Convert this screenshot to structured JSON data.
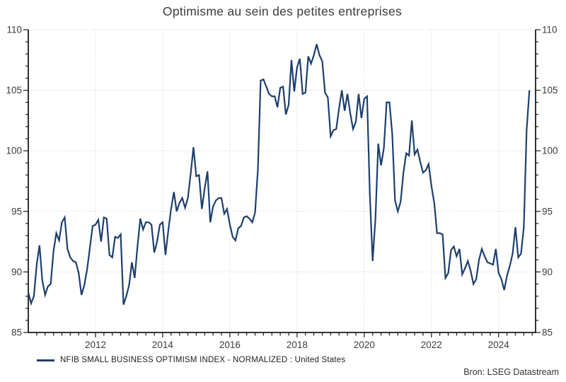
{
  "title": "Optimisme au sein des petites entreprises",
  "source": "Bron: LSEG Datastream",
  "legend": {
    "label": "NFIB SMALL BUSINESS OPTIMISM INDEX - NORMALIZED : United States"
  },
  "colors": {
    "line": "#1c3f6e",
    "grid": "#c9c9c9",
    "axis": "#1a1a1a",
    "tick_label": "#3c3c3c"
  },
  "chart_data": {
    "type": "line",
    "title": "Optimisme au sein des petites entreprises",
    "xlabel": "",
    "ylabel": "",
    "ylim": [
      85,
      110
    ],
    "y_ticks": [
      85,
      90,
      95,
      100,
      105,
      110
    ],
    "y_minor_step": 1,
    "x_tick_years": [
      2012,
      2014,
      2016,
      2018,
      2020,
      2022,
      2024
    ],
    "x_tick_labels": [
      "2012",
      "2014",
      "2016",
      "2018",
      "2020",
      "2022",
      "2024"
    ],
    "x_minor_step_years": 0.25,
    "x_range_years": [
      2010.0,
      2025.1
    ],
    "grid": "dotted",
    "legend_position": "bottom-left",
    "series": [
      {
        "name": "NFIB SMALL BUSINESS OPTIMISM INDEX - NORMALIZED : United States",
        "frequency": "monthly",
        "start": "2010-01",
        "end": "2024-12",
        "values": [
          88.3,
          87.4,
          88.0,
          90.6,
          92.2,
          89.3,
          88.1,
          88.8,
          89.0,
          91.7,
          93.2,
          92.6,
          94.1,
          94.5,
          91.9,
          91.2,
          90.9,
          90.8,
          89.9,
          88.1,
          88.9,
          90.2,
          92.0,
          93.8,
          93.9,
          94.3,
          92.5,
          94.5,
          94.4,
          91.4,
          91.2,
          92.9,
          92.8,
          93.1,
          87.3,
          88.0,
          88.9,
          90.8,
          89.5,
          92.1,
          94.4,
          93.5,
          94.1,
          94.1,
          93.9,
          91.6,
          92.5,
          93.9,
          94.1,
          91.4,
          93.4,
          95.2,
          96.6,
          95.0,
          95.7,
          96.1,
          95.3,
          96.1,
          98.1,
          100.3,
          97.9,
          98.0,
          95.2,
          96.9,
          98.3,
          94.1,
          95.4,
          95.9,
          96.1,
          96.1,
          94.8,
          95.2,
          93.9,
          92.9,
          92.6,
          93.6,
          93.8,
          94.5,
          94.6,
          94.4,
          94.1,
          94.9,
          98.4,
          105.8,
          105.9,
          105.3,
          104.7,
          104.5,
          104.5,
          103.6,
          105.2,
          105.3,
          103.0,
          103.8,
          107.5,
          104.9,
          106.9,
          107.6,
          104.7,
          104.8,
          107.8,
          107.2,
          107.9,
          108.8,
          107.9,
          107.4,
          104.8,
          104.4,
          101.2,
          101.7,
          101.8,
          103.5,
          105.0,
          103.3,
          104.7,
          103.1,
          101.8,
          102.4,
          104.7,
          102.7,
          104.3,
          104.5,
          96.4,
          90.9,
          94.4,
          100.6,
          98.8,
          100.2,
          104.0,
          104.0,
          101.4,
          95.9,
          95.0,
          95.8,
          98.2,
          99.8,
          99.6,
          102.5,
          99.7,
          100.1,
          99.1,
          98.2,
          98.4,
          98.9,
          97.1,
          95.7,
          93.2,
          93.2,
          93.1,
          89.5,
          89.9,
          91.8,
          92.1,
          91.3,
          91.9,
          89.8,
          90.3,
          90.9,
          90.1,
          89.0,
          89.4,
          91.0,
          91.9,
          91.3,
          90.8,
          90.7,
          90.6,
          91.9,
          89.9,
          89.4,
          88.5,
          89.7,
          90.5,
          91.5,
          93.7,
          91.2,
          91.5,
          93.7,
          101.7,
          105.0
        ]
      }
    ]
  }
}
